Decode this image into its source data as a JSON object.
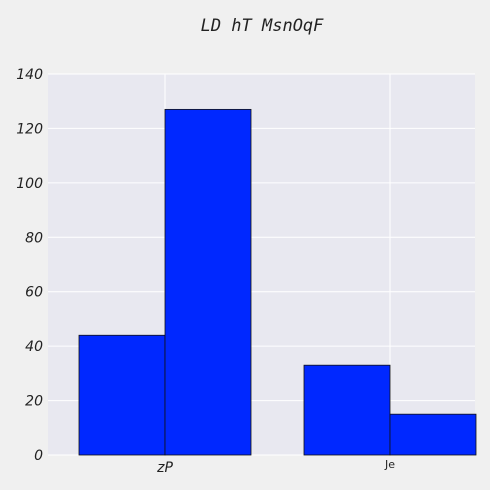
{
  "chart_data": {
    "type": "bar",
    "title": "LD hT MsnOqF",
    "categories": [
      "zP",
      "Je"
    ],
    "series": [
      {
        "values": [
          44,
          33
        ],
        "color": "#0028ff"
      },
      {
        "values": [
          127,
          15
        ],
        "color": "#0028ff"
      }
    ],
    "ylim": [
      0,
      140
    ],
    "yticks": [
      0,
      20,
      40,
      60,
      80,
      100,
      120,
      140
    ],
    "grid": true,
    "xlabel": "",
    "ylabel": ""
  }
}
